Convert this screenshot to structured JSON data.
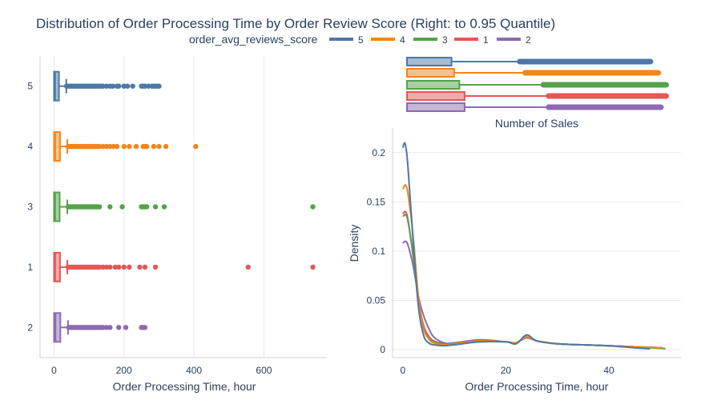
{
  "title": "Distribution of Order Processing Time by Order Review Score (Right: to 0.95 Quantile)",
  "legend": {
    "title": "order_avg_reviews_score",
    "items": [
      {
        "label": "5",
        "color": "#4c78a8"
      },
      {
        "label": "4",
        "color": "#f58518"
      },
      {
        "label": "3",
        "color": "#54a24b"
      },
      {
        "label": "1",
        "color": "#e45756"
      },
      {
        "label": "2",
        "color": "#8c6bb1"
      }
    ]
  },
  "chart_data": [
    {
      "type": "box",
      "orientation": "horizontal",
      "xlabel": "Order Processing Time, hour",
      "ylabel": "",
      "xlim": [
        -40,
        780
      ],
      "xticks": [
        0,
        200,
        400,
        600
      ],
      "categories": [
        "5",
        "4",
        "3",
        "1",
        "2"
      ],
      "grid": true,
      "series": [
        {
          "name": "5",
          "color": "#4c78a8",
          "q1": 0,
          "median": 3,
          "q3": 14,
          "whisker_low": 0,
          "whisker_high": 35,
          "outliers": [
            36,
            40,
            45,
            50,
            55,
            60,
            65,
            70,
            75,
            80,
            85,
            90,
            95,
            100,
            105,
            110,
            115,
            120,
            125,
            130,
            135,
            140,
            150,
            160,
            168,
            180,
            185,
            200,
            210,
            225,
            250,
            255,
            260,
            270,
            280,
            285,
            290,
            295,
            300
          ]
        },
        {
          "name": "4",
          "color": "#f58518",
          "q1": 0,
          "median": 3,
          "q3": 17,
          "whisker_low": 0,
          "whisker_high": 38,
          "outliers": [
            40,
            45,
            50,
            55,
            60,
            65,
            70,
            75,
            80,
            85,
            90,
            95,
            100,
            105,
            110,
            115,
            120,
            125,
            130,
            140,
            150,
            160,
            170,
            180,
            200,
            215,
            235,
            255,
            260,
            265,
            285,
            300,
            320,
            405
          ]
        },
        {
          "name": "3",
          "color": "#54a24b",
          "q1": 0,
          "median": 3,
          "q3": 16,
          "whisker_low": 0,
          "whisker_high": 38,
          "outliers": [
            40,
            45,
            50,
            55,
            60,
            65,
            70,
            75,
            80,
            85,
            90,
            95,
            100,
            105,
            110,
            115,
            120,
            125,
            130,
            160,
            195,
            250,
            255,
            260,
            265,
            290,
            315,
            740
          ]
        },
        {
          "name": "1",
          "color": "#e45756",
          "q1": 0,
          "median": 3,
          "q3": 17,
          "whisker_low": 0,
          "whisker_high": 38,
          "outliers": [
            40,
            45,
            50,
            55,
            60,
            65,
            70,
            75,
            80,
            85,
            90,
            95,
            100,
            105,
            110,
            115,
            120,
            125,
            130,
            140,
            150,
            160,
            175,
            185,
            200,
            215,
            245,
            260,
            290,
            555,
            740
          ]
        },
        {
          "name": "2",
          "color": "#8c6bb1",
          "q1": 0,
          "median": 4,
          "q3": 18,
          "whisker_low": 0,
          "whisker_high": 40,
          "outliers": [
            42,
            45,
            50,
            55,
            60,
            65,
            70,
            75,
            80,
            85,
            90,
            95,
            100,
            105,
            110,
            115,
            120,
            125,
            130,
            135,
            140,
            150,
            160,
            185,
            205,
            250,
            255,
            260
          ]
        }
      ]
    },
    {
      "type": "box",
      "orientation": "horizontal",
      "xlabel": "Number of Sales",
      "categories": [
        "5",
        "4",
        "3",
        "1",
        "2"
      ],
      "series": [
        {
          "name": "5",
          "color": "#4c78a8",
          "box_end": 0.17,
          "strip_start": 0.42,
          "strip_end": 0.94
        },
        {
          "name": "4",
          "color": "#f58518",
          "box_end": 0.18,
          "strip_start": 0.44,
          "strip_end": 0.97
        },
        {
          "name": "3",
          "color": "#54a24b",
          "box_end": 0.2,
          "strip_start": 0.51,
          "strip_end": 1.0
        },
        {
          "name": "1",
          "color": "#e45756",
          "box_end": 0.22,
          "strip_start": 0.53,
          "strip_end": 1.0
        },
        {
          "name": "2",
          "color": "#8c6bb1",
          "box_end": 0.22,
          "strip_start": 0.53,
          "strip_end": 0.98
        }
      ]
    },
    {
      "type": "line",
      "xlabel": "Order Processing Time, hour",
      "ylabel": "Density",
      "xlim": [
        -2,
        54
      ],
      "ylim": [
        -0.008,
        0.225
      ],
      "xticks": [
        0,
        20,
        40
      ],
      "yticks": [
        0,
        0.05,
        0.1,
        0.15,
        0.2
      ],
      "ytick_labels": [
        "0",
        "0.05",
        "0.1",
        "0.15",
        "0.2"
      ],
      "grid": true,
      "series": [
        {
          "name": "2",
          "color": "#8c6bb1",
          "x": [
            0,
            0.5,
            1,
            2,
            3,
            4,
            5,
            6,
            8,
            10,
            15,
            20,
            22,
            24,
            26,
            30,
            35,
            40,
            45,
            50.5
          ],
          "y": [
            0.108,
            0.11,
            0.106,
            0.085,
            0.055,
            0.035,
            0.022,
            0.013,
            0.007,
            0.007,
            0.01,
            0.008,
            0.007,
            0.012,
            0.009,
            0.006,
            0.005,
            0.004,
            0.003,
            0.002
          ]
        },
        {
          "name": "1",
          "color": "#e45756",
          "x": [
            0,
            0.5,
            1,
            2,
            3,
            4,
            5,
            6,
            8,
            10,
            15,
            20,
            22,
            24,
            26,
            30,
            35,
            40,
            45,
            50.5
          ],
          "y": [
            0.138,
            0.14,
            0.132,
            0.095,
            0.052,
            0.025,
            0.014,
            0.009,
            0.006,
            0.006,
            0.009,
            0.008,
            0.007,
            0.013,
            0.009,
            0.006,
            0.005,
            0.004,
            0.003,
            0.002
          ]
        },
        {
          "name": "3",
          "color": "#54a24b",
          "x": [
            0,
            0.5,
            1,
            2,
            3,
            4,
            5,
            6,
            8,
            10,
            15,
            20,
            22,
            24,
            26,
            30,
            35,
            40,
            45,
            51
          ],
          "y": [
            0.135,
            0.137,
            0.13,
            0.095,
            0.05,
            0.022,
            0.012,
            0.008,
            0.006,
            0.006,
            0.008,
            0.008,
            0.007,
            0.013,
            0.009,
            0.006,
            0.005,
            0.004,
            0.003,
            0.001
          ]
        },
        {
          "name": "4",
          "color": "#f58518",
          "x": [
            0,
            0.5,
            1,
            2,
            3,
            4,
            5,
            6,
            8,
            10,
            15,
            20,
            22,
            24,
            26,
            30,
            35,
            40,
            45,
            50.5
          ],
          "y": [
            0.163,
            0.167,
            0.158,
            0.115,
            0.055,
            0.022,
            0.011,
            0.007,
            0.005,
            0.006,
            0.009,
            0.008,
            0.007,
            0.013,
            0.009,
            0.006,
            0.005,
            0.004,
            0.003,
            0.002
          ]
        },
        {
          "name": "5",
          "color": "#4c78a8",
          "x": [
            0,
            0.3,
            0.6,
            1,
            2,
            3,
            4,
            5,
            6,
            8,
            10,
            15,
            20,
            22,
            24,
            26,
            30,
            35,
            40,
            45,
            48
          ],
          "y": [
            0.205,
            0.21,
            0.205,
            0.185,
            0.11,
            0.045,
            0.015,
            0.007,
            0.005,
            0.004,
            0.005,
            0.008,
            0.008,
            0.006,
            0.015,
            0.009,
            0.006,
            0.005,
            0.004,
            0.002,
            0.001
          ]
        }
      ]
    }
  ]
}
